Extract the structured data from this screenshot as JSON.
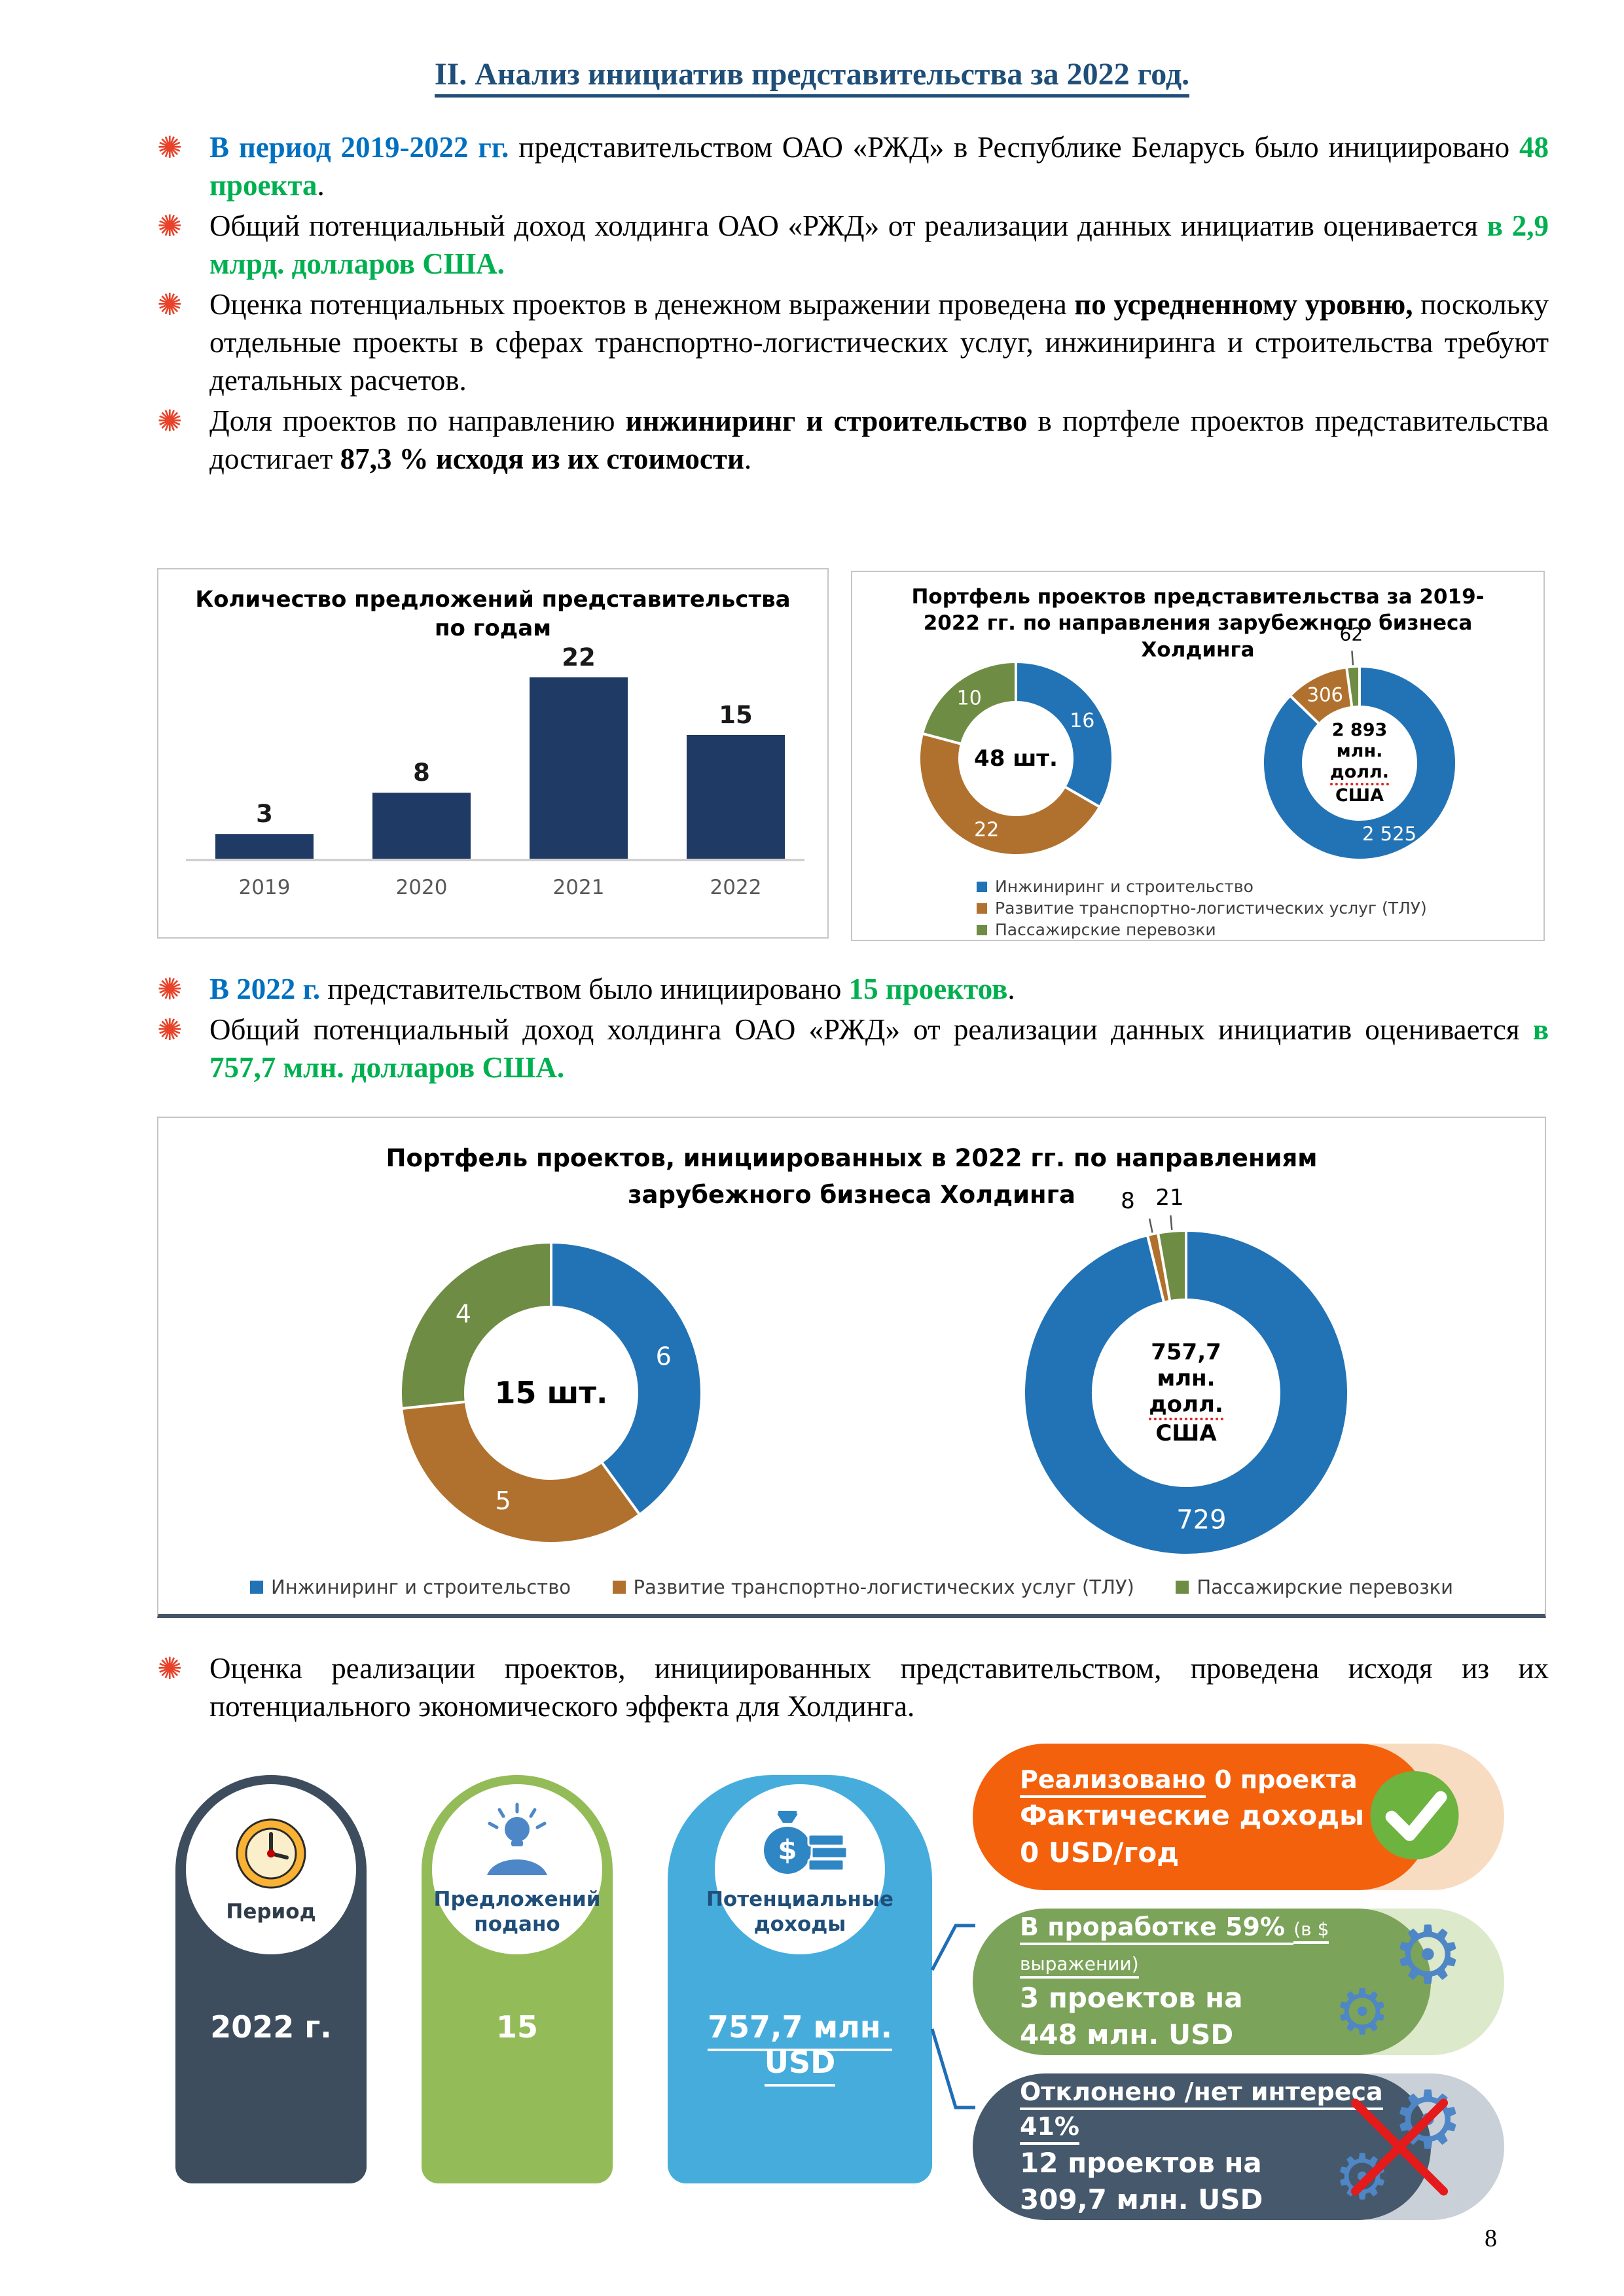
{
  "title": "II. Анализ инициатив представительства за 2022 год.",
  "page_number": "8",
  "accent_colors": {
    "blue_text": "#0070C0",
    "green_text": "#00B050",
    "title": "#1F4E79",
    "bullet_icon": "#E8432A"
  },
  "bullets_top": [
    {
      "segments": [
        {
          "t": "В период 2019-2022 гг. ",
          "s": "blue"
        },
        {
          "t": "представительством ОАО «РЖД» в Республике Беларусь было инициировано ",
          "s": "n"
        },
        {
          "t": "48 проекта",
          "s": "green"
        },
        {
          "t": ".",
          "s": "n"
        }
      ]
    },
    {
      "segments": [
        {
          "t": "Общий потенциальный доход холдинга ОАО «РЖД» от реализации данных инициатив оценивается ",
          "s": "n"
        },
        {
          "t": "в 2,9 млрд. долларов США.",
          "s": "green"
        }
      ]
    },
    {
      "segments": [
        {
          "t": "Оценка потенциальных проектов в денежном выражении проведена ",
          "s": "n"
        },
        {
          "t": "по усредненному уровню,",
          "s": "bold"
        },
        {
          "t": " поскольку отдельные проекты в сферах транспортно-логистических услуг, инжиниринга и строительства требуют детальных расчетов.",
          "s": "n"
        }
      ]
    },
    {
      "segments": [
        {
          "t": "Доля проектов по направлению ",
          "s": "n"
        },
        {
          "t": "инжиниринг и строительство",
          "s": "bold"
        },
        {
          "t": " в портфеле проектов представительства достигает ",
          "s": "n"
        },
        {
          "t": "87,3 % исходя из их стоимости",
          "s": "bold"
        },
        {
          "t": ".",
          "s": "n"
        }
      ]
    }
  ],
  "bullets_mid": [
    {
      "segments": [
        {
          "t": "В 2022 г. ",
          "s": "blue"
        },
        {
          "t": "представительством было инициировано ",
          "s": "n"
        },
        {
          "t": "15 проектов",
          "s": "green"
        },
        {
          "t": ".",
          "s": "n"
        }
      ]
    },
    {
      "segments": [
        {
          "t": "Общий потенциальный доход холдинга ОАО «РЖД» от реализации данных инициатив оценивается ",
          "s": "n"
        },
        {
          "t": "в 757,7 млн. долларов США.",
          "s": "green"
        }
      ]
    }
  ],
  "bullets_bottom": [
    {
      "segments": [
        {
          "t": "Оценка реализации проектов, инициированных представительством, проведена исходя из их потенциального экономического эффекта для Холдинга.",
          "s": "n"
        }
      ]
    }
  ],
  "chart_data": [
    {
      "type": "bar",
      "title": "Количество предложений представительства по годам",
      "categories": [
        "2019",
        "2020",
        "2021",
        "2022"
      ],
      "values": [
        3,
        8,
        22,
        15
      ],
      "value_labels": [
        "3",
        "8",
        "22",
        "15"
      ],
      "bar_color": "#1F3A64",
      "ylim": [
        0,
        24
      ],
      "grid": false
    },
    {
      "type": "donut",
      "title": "Портфель проектов представительства за 2019-2022 гг. по направления зарубежного бизнеса Холдинга",
      "legend": [
        "Инжиниринг и строительство",
        "Развитие транспортно-логистических услуг (ТЛУ)",
        "Пассажирские перевозки"
      ],
      "colors": [
        "#2273B5",
        "#B1712E",
        "#6F8C44"
      ],
      "legend_position": "bottom-left",
      "donuts": [
        {
          "name": "projects_count",
          "values": [
            16,
            22,
            10
          ],
          "labels": [
            "16",
            "22",
            "10"
          ],
          "center_lines": [
            "48 шт."
          ]
        },
        {
          "name": "value_musd",
          "values": [
            2525,
            306,
            62
          ],
          "labels": [
            "2 525",
            "306",
            "62"
          ],
          "center_lines": [
            "2 893",
            "млн.",
            "долл.",
            "США"
          ],
          "misspell_line": 2
        }
      ]
    },
    {
      "type": "donut",
      "title": "Портфель проектов, инициированных в 2022 гг. по направлениям зарубежного бизнеса Холдинга",
      "legend": [
        "Инжиниринг и строительство",
        "Развитие транспортно-логистических услуг (ТЛУ)",
        "Пассажирские перевозки"
      ],
      "colors": [
        "#2273B5",
        "#B1712E",
        "#6F8C44"
      ],
      "legend_position": "bottom-row",
      "donuts": [
        {
          "name": "projects_count",
          "values": [
            6,
            5,
            4
          ],
          "labels": [
            "6",
            "5",
            "4"
          ],
          "center_lines": [
            "15 шт."
          ]
        },
        {
          "name": "value_musd",
          "values": [
            729,
            8,
            21
          ],
          "labels": [
            "729",
            "8",
            "21"
          ],
          "center_lines": [
            "757,7",
            "млн.",
            "долл.",
            "США"
          ],
          "misspell_line": 2
        }
      ]
    }
  ],
  "infographic": {
    "pills": [
      {
        "label": "Период",
        "value": "2022 г.",
        "color": "#3D4D5D",
        "label_color": "#2E3B49",
        "icon": "clock"
      },
      {
        "label": "Предложений подано",
        "value": "15",
        "color": "#93BB58",
        "label_color": "#1F4E79",
        "icon": "idea-person"
      },
      {
        "label": "Потенциальные доходы",
        "value": "757,7 млн. USD",
        "color": "#46ACDC",
        "label_color": "#1F4E79",
        "icon": "money-bag",
        "value_underline": true
      }
    ],
    "status_bars": [
      {
        "heading": [
          {
            "t": "Реализовано",
            "u": true
          },
          {
            "t": " 0 проекта",
            "u": false
          }
        ],
        "lines": [
          "Фактические доходы",
          "0 USD/год"
        ],
        "color": "#F4610D",
        "cap_color": "#F8DCC2",
        "icon": "check"
      },
      {
        "heading": [
          {
            "t": "В проработке 59% ",
            "u": true
          },
          {
            "t": "(в $ выражении)",
            "u": true,
            "small": true
          }
        ],
        "lines": [
          "3 проектов на",
          "448 млн. USD"
        ],
        "color": "#7CA35A",
        "cap_color": "#DCE9CB",
        "icon": "gears"
      },
      {
        "heading": [
          {
            "t": "Отклонено /нет интереса 41%",
            "u": true
          }
        ],
        "lines": [
          "12 проектов на",
          "309,7 млн. USD"
        ],
        "color": "#46586B",
        "cap_color": "#C9D0D8",
        "icon": "gears-crossed"
      }
    ],
    "connector_color": "#1F6EB5"
  }
}
